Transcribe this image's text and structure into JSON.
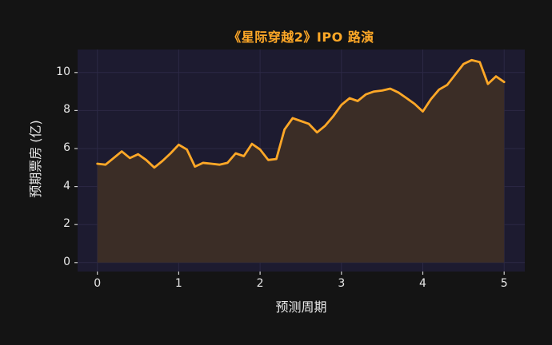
{
  "colors": {
    "background": "#141414",
    "plot_background": "#1d1b30",
    "grid": "#2c2945",
    "line": "#ffa827",
    "fill": "#3b2d26",
    "title_text": "#ffa827",
    "tick_text": "#e8e8e8",
    "tick_mark": "#cfcfcf",
    "axis_label_text": "#e8e8e8"
  },
  "chart_data": {
    "type": "area",
    "title": "《星际穿越2》IPO 路演",
    "xlabel": "预测周期",
    "ylabel": "预期票房 (亿)",
    "series_name": "预期票房",
    "grid": true,
    "legend": null,
    "xlim": [
      -0.25,
      5.25
    ],
    "ylim": [
      -0.5,
      11.2
    ],
    "x_ticks": [
      0,
      1,
      2,
      3,
      4,
      5
    ],
    "y_ticks": [
      0,
      2,
      4,
      6,
      8,
      10
    ],
    "x": [
      0.0,
      0.1,
      0.2,
      0.3,
      0.4,
      0.5,
      0.6,
      0.7,
      0.8,
      0.9,
      1.0,
      1.1,
      1.2,
      1.3,
      1.4,
      1.5,
      1.6,
      1.7,
      1.8,
      1.9,
      2.0,
      2.1,
      2.2,
      2.3,
      2.4,
      2.5,
      2.6,
      2.7,
      2.8,
      2.9,
      3.0,
      3.1,
      3.2,
      3.3,
      3.4,
      3.5,
      3.6,
      3.7,
      3.8,
      3.9,
      4.0,
      4.1,
      4.2,
      4.3,
      4.4,
      4.5,
      4.6,
      4.7,
      4.8,
      4.9,
      5.0
    ],
    "y": [
      5.2,
      5.15,
      5.5,
      5.85,
      5.5,
      5.7,
      5.4,
      5.0,
      5.35,
      5.75,
      6.2,
      5.95,
      5.05,
      5.25,
      5.2,
      5.15,
      5.25,
      5.75,
      5.6,
      6.25,
      5.95,
      5.4,
      5.45,
      7.0,
      7.6,
      7.45,
      7.3,
      6.85,
      7.2,
      7.7,
      8.3,
      8.65,
      8.5,
      8.85,
      9.0,
      9.05,
      9.15,
      8.95,
      8.65,
      8.35,
      7.95,
      8.6,
      9.1,
      9.35,
      9.9,
      10.45,
      10.65,
      10.55,
      9.4,
      9.8,
      9.5
    ]
  }
}
